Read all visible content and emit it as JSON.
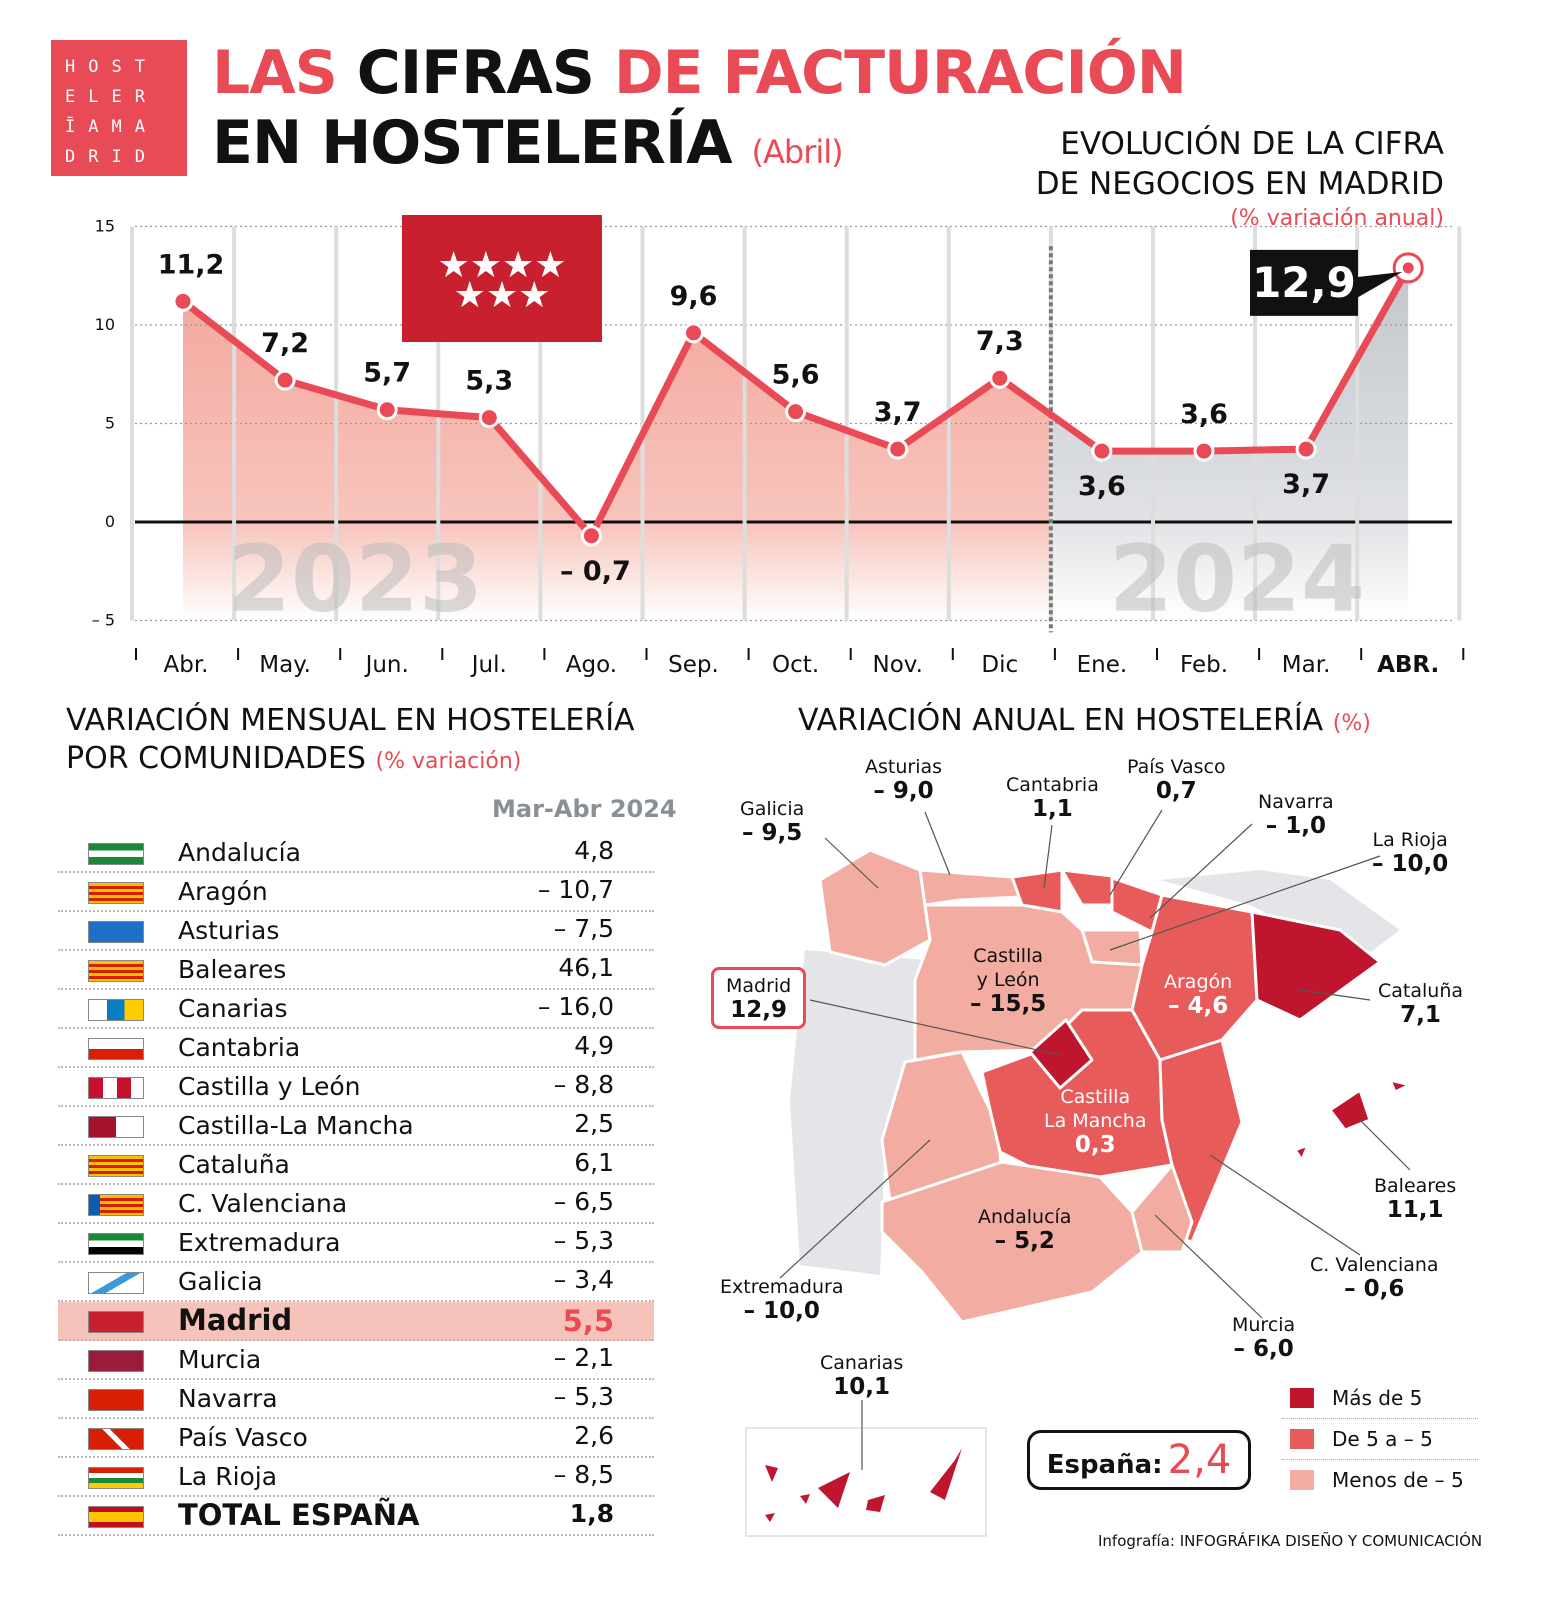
{
  "logo": {
    "text": "HOSTELERÍA MADRID",
    "lines": [
      "HOST",
      "ELER",
      "ĪAMA",
      "DRID"
    ]
  },
  "header": {
    "title_part1": "LAS",
    "title_part2": "CIFRAS",
    "title_part3": "DE FACTURACIÓN",
    "title_line2": "EN HOSTELERÍA",
    "title_suffix": "(Abril)"
  },
  "chart_data": {
    "type": "line",
    "title": "EVOLUCIÓN DE LA CIFRA DE NEGOCIOS EN MADRID",
    "title_line1": "EVOLUCIÓN DE LA CIFRA",
    "title_line2": "DE NEGOCIOS EN MADRID",
    "subtitle": "(% variación anual)",
    "categories": [
      "Abr.",
      "May.",
      "Jun.",
      "Jul.",
      "Ago.",
      "Sep.",
      "Oct.",
      "Nov.",
      "Dic",
      "Ene.",
      "Feb.",
      "Mar.",
      "ABR."
    ],
    "values": [
      11.2,
      7.2,
      5.7,
      5.3,
      -0.7,
      9.6,
      5.6,
      3.7,
      7.3,
      3.6,
      3.6,
      3.7,
      12.9
    ],
    "value_labels": [
      "11,2",
      "7,2",
      "5,7",
      "5,3",
      "– 0,7",
      "9,6",
      "5,6",
      "3,7",
      "7,3",
      "3,6",
      "3,6",
      "3,7",
      "12,9"
    ],
    "ylim": [
      -5,
      15
    ],
    "yticks": [
      "15",
      "10",
      "5",
      "0",
      "– 5"
    ],
    "yticks_values": [
      15,
      10,
      5,
      0,
      -5
    ],
    "year_labels": [
      "2023",
      "2024"
    ],
    "grid": true,
    "colors": {
      "line": "#e84b55",
      "area_2023": "#f4a99f",
      "area_2024": "#c9ccd1",
      "highlight_box": "#111111"
    }
  },
  "monthly": {
    "title_line1": "VARIACIÓN MENSUAL EN HOSTELERÍA",
    "title_line2": "POR COMUNIDADES",
    "title_suffix": "(% variación)",
    "column_header": "Mar-Abr 2024",
    "rows": [
      {
        "name": "Andalucía",
        "value": "4,8",
        "flag": "andalucia"
      },
      {
        "name": "Aragón",
        "value": "– 10,7",
        "flag": "aragon"
      },
      {
        "name": "Asturias",
        "value": "– 7,5",
        "flag": "asturias"
      },
      {
        "name": "Baleares",
        "value": "46,1",
        "flag": "baleares"
      },
      {
        "name": "Canarias",
        "value": "– 16,0",
        "flag": "canarias"
      },
      {
        "name": "Cantabria",
        "value": "4,9",
        "flag": "cantabria"
      },
      {
        "name": "Castilla y León",
        "value": "– 8,8",
        "flag": "cyl"
      },
      {
        "name": "Castilla-La Mancha",
        "value": "2,5",
        "flag": "clm"
      },
      {
        "name": "Cataluña",
        "value": "6,1",
        "flag": "cataluna"
      },
      {
        "name": "C. Valenciana",
        "value": "– 6,5",
        "flag": "valencia"
      },
      {
        "name": "Extremadura",
        "value": "– 5,3",
        "flag": "extremadura"
      },
      {
        "name": "Galicia",
        "value": "– 3,4",
        "flag": "galicia"
      },
      {
        "name": "Madrid",
        "value": "5,5",
        "flag": "madrid"
      },
      {
        "name": "Murcia",
        "value": "– 2,1",
        "flag": "murcia"
      },
      {
        "name": "Navarra",
        "value": "– 5,3",
        "flag": "navarra"
      },
      {
        "name": "País Vasco",
        "value": "2,6",
        "flag": "paisvasco"
      },
      {
        "name": "La Rioja",
        "value": "– 8,5",
        "flag": "rioja"
      },
      {
        "name": "TOTAL ESPAÑA",
        "value": "1,8",
        "flag": "espana"
      }
    ]
  },
  "annual": {
    "title": "VARIACIÓN ANUAL EN HOSTELERÍA",
    "title_suffix": "(%)",
    "regions": {
      "galicia": {
        "name": "Galicia",
        "value": "– 9,5"
      },
      "asturias": {
        "name": "Asturias",
        "value": "– 9,0"
      },
      "cantabria": {
        "name": "Cantabria",
        "value": "1,1"
      },
      "paisvasco": {
        "name": "País Vasco",
        "value": "0,7"
      },
      "navarra": {
        "name": "Navarra",
        "value": "– 1,0"
      },
      "rioja": {
        "name": "La Rioja",
        "value": "– 10,0"
      },
      "cyl": {
        "name1": "Castilla",
        "name2": "y León",
        "value": "– 15,5"
      },
      "aragon": {
        "name": "Aragón",
        "value": "– 4,6"
      },
      "cataluna": {
        "name": "Cataluña",
        "value": "7,1"
      },
      "madrid": {
        "name": "Madrid",
        "value": "12,9"
      },
      "clm": {
        "name1": "Castilla",
        "name2": "La Mancha",
        "value": "0,3"
      },
      "baleares": {
        "name": "Baleares",
        "value": "11,1"
      },
      "extremadura": {
        "name": "Extremadura",
        "value": "– 10,0"
      },
      "andalucia": {
        "name": "Andalucía",
        "value": "– 5,2"
      },
      "valencia": {
        "name": "C. Valenciana",
        "value": "– 0,6"
      },
      "murcia": {
        "name": "Murcia",
        "value": "– 6,0"
      },
      "canarias": {
        "name": "Canarias",
        "value": "10,1"
      }
    },
    "espana_label": "España:",
    "espana_value": "2,4",
    "legend": [
      {
        "label": "Más de 5",
        "color": "#c0152f"
      },
      {
        "label": "De 5 a – 5",
        "color": "#e85b5b"
      },
      {
        "label": "Menos de – 5",
        "color": "#f2aca2"
      }
    ]
  },
  "credit": {
    "prefix": "Infografía:",
    "name": "INFOGRÁFIKA DISEÑO Y COMUNICACIÓN"
  }
}
